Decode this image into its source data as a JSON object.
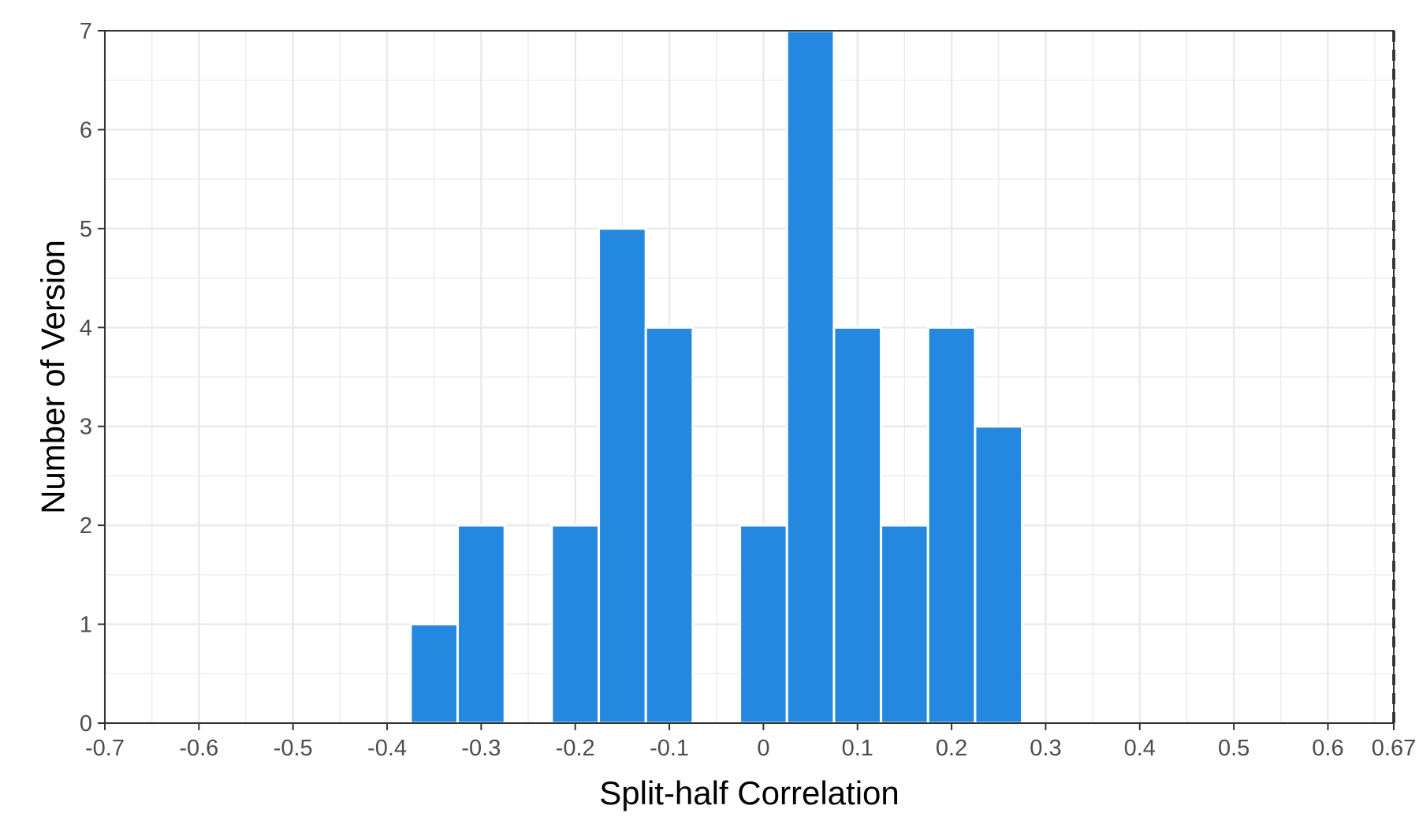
{
  "chart_data": {
    "type": "bar",
    "bins": [
      {
        "x": -0.35,
        "count": 1
      },
      {
        "x": -0.3,
        "count": 2
      },
      {
        "x": -0.2,
        "count": 2
      },
      {
        "x": -0.15,
        "count": 5
      },
      {
        "x": -0.1,
        "count": 4
      },
      {
        "x": 0.0,
        "count": 2
      },
      {
        "x": 0.05,
        "count": 7
      },
      {
        "x": 0.1,
        "count": 4
      },
      {
        "x": 0.15,
        "count": 2
      },
      {
        "x": 0.2,
        "count": 4
      },
      {
        "x": 0.25,
        "count": 3
      }
    ],
    "bin_width": 0.05,
    "xlabel": "Split-half Correlation",
    "ylabel": "Number of Version",
    "xlim": [
      -0.7,
      0.67
    ],
    "ylim": [
      0,
      7
    ],
    "x_ticks": [
      {
        "value": -0.7,
        "label": "-0.7"
      },
      {
        "value": -0.6,
        "label": "-0.6"
      },
      {
        "value": -0.5,
        "label": "-0.5"
      },
      {
        "value": -0.4,
        "label": "-0.4"
      },
      {
        "value": -0.3,
        "label": "-0.3"
      },
      {
        "value": -0.2,
        "label": "-0.2"
      },
      {
        "value": -0.1,
        "label": "-0.1"
      },
      {
        "value": 0,
        "label": "0"
      },
      {
        "value": 0.1,
        "label": "0.1"
      },
      {
        "value": 0.2,
        "label": "0.2"
      },
      {
        "value": 0.3,
        "label": "0.3"
      },
      {
        "value": 0.4,
        "label": "0.4"
      },
      {
        "value": 0.5,
        "label": "0.5"
      },
      {
        "value": 0.6,
        "label": "0.6"
      },
      {
        "value": 0.67,
        "label": "0.67"
      }
    ],
    "y_ticks": [
      {
        "value": 0,
        "label": "0"
      },
      {
        "value": 1,
        "label": "1"
      },
      {
        "value": 2,
        "label": "2"
      },
      {
        "value": 3,
        "label": "3"
      },
      {
        "value": 4,
        "label": "4"
      },
      {
        "value": 5,
        "label": "5"
      },
      {
        "value": 6,
        "label": "6"
      },
      {
        "value": 7,
        "label": "7"
      }
    ],
    "reference_line": {
      "x": 0.67,
      "style": "dashed",
      "color": "#000000"
    },
    "grid": true,
    "colors": {
      "bar": "#2588e0",
      "bar_outline": "#ffffff",
      "grid": "#ebebeb",
      "panel_border": "#333333"
    }
  }
}
